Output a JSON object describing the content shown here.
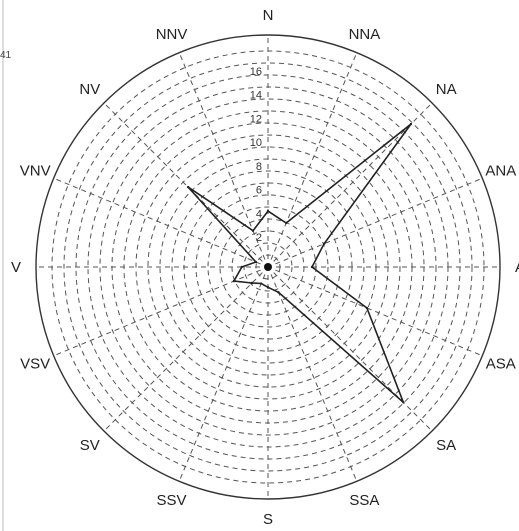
{
  "chart_data": {
    "type": "radar",
    "title": "",
    "corner_label": "41",
    "directions": [
      "N",
      "NNA",
      "NA",
      "ANA",
      "A",
      "ASA",
      "SA",
      "SSA",
      "S",
      "SSV",
      "SV",
      "VSV",
      "V",
      "VNV",
      "NV",
      "NNV"
    ],
    "radial_ticks": [
      "2",
      "4",
      "6",
      "8",
      "10",
      "12",
      "14",
      "16"
    ],
    "radial_max": 18,
    "grid": true,
    "series": [
      {
        "values": [
          4.2,
          3.5,
          16.5,
          4.6,
          3.2,
          8.5,
          15.6,
          1.8,
          1.2,
          1.0,
          1.4,
          2.6,
          1.7,
          0.6,
          9.0,
          2.8
        ]
      }
    ]
  }
}
